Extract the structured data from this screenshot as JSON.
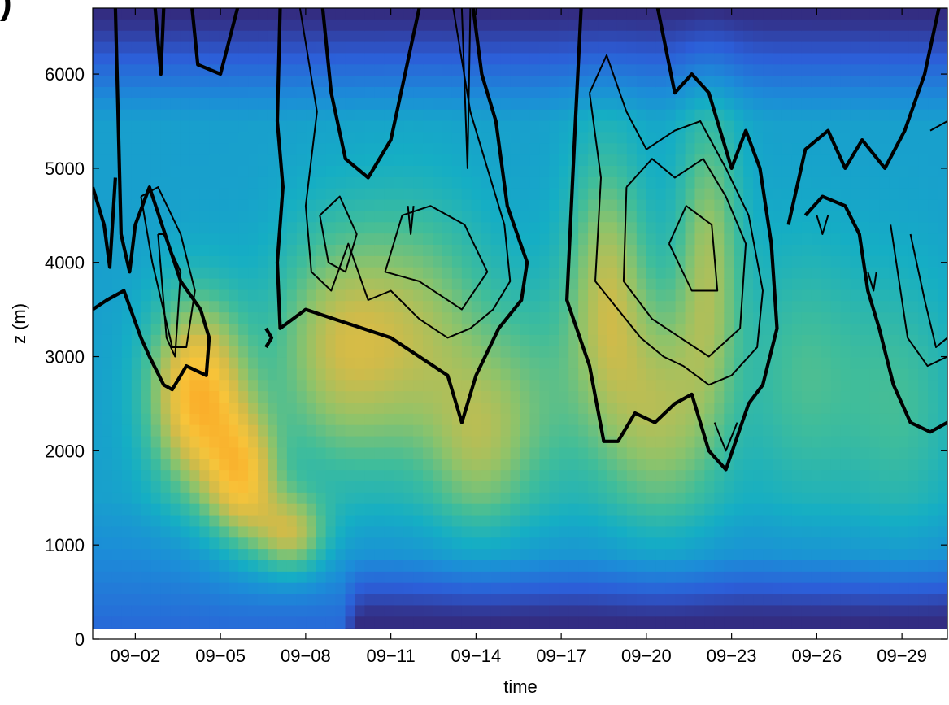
{
  "panel": {
    "letter": ")"
  },
  "chart_data": {
    "type": "heatmap",
    "title": "",
    "xlabel": "time",
    "ylabel": "z (m)",
    "xlim": [
      0.5,
      30.6
    ],
    "ylim": [
      0,
      6700
    ],
    "x_ticks": [
      {
        "value": 2,
        "label": "09−02"
      },
      {
        "value": 5,
        "label": "09−05"
      },
      {
        "value": 8,
        "label": "09−08"
      },
      {
        "value": 11,
        "label": "09−11"
      },
      {
        "value": 14,
        "label": "09−14"
      },
      {
        "value": 17,
        "label": "09−17"
      },
      {
        "value": 20,
        "label": "09−20"
      },
      {
        "value": 23,
        "label": "09−23"
      },
      {
        "value": 26,
        "label": "09−26"
      },
      {
        "value": 29,
        "label": "09−29"
      }
    ],
    "y_ticks": [
      {
        "value": 0,
        "label": "0"
      },
      {
        "value": 1000,
        "label": "1000"
      },
      {
        "value": 2000,
        "label": "2000"
      },
      {
        "value": 3000,
        "label": "3000"
      },
      {
        "value": 4000,
        "label": "4000"
      },
      {
        "value": 5000,
        "label": "5000"
      },
      {
        "value": 6000,
        "label": "6000"
      }
    ],
    "colormap": [
      "#332d82",
      "#2c5ed8",
      "#1c8cd8",
      "#15aec4",
      "#40bd9a",
      "#8ec36a",
      "#d1bb49",
      "#f7c43a",
      "#fba725"
    ],
    "field_blobs": [
      {
        "x": 4.2,
        "z": 2600,
        "amp": 1.0,
        "sx": 1.2,
        "sz": 700
      },
      {
        "x": 5.8,
        "z": 1700,
        "amp": 0.75,
        "sx": 0.9,
        "sz": 500
      },
      {
        "x": 7.5,
        "z": 1100,
        "amp": 0.65,
        "sx": 0.9,
        "sz": 300
      },
      {
        "x": 9.0,
        "z": 3100,
        "amp": 0.55,
        "sx": 1.6,
        "sz": 900
      },
      {
        "x": 12.0,
        "z": 3200,
        "amp": 0.5,
        "sx": 1.8,
        "sz": 1000
      },
      {
        "x": 14.0,
        "z": 2000,
        "amp": 0.35,
        "sx": 1.2,
        "sz": 700
      },
      {
        "x": 18.6,
        "z": 3800,
        "amp": 0.55,
        "sx": 1.0,
        "sz": 1000
      },
      {
        "x": 20.5,
        "z": 2400,
        "amp": 0.55,
        "sx": 1.5,
        "sz": 900
      },
      {
        "x": 22.2,
        "z": 4100,
        "amp": 0.5,
        "sx": 0.8,
        "sz": 1100
      },
      {
        "x": 25.5,
        "z": 2800,
        "amp": 0.3,
        "sx": 1.5,
        "sz": 1000
      },
      {
        "x": 29.0,
        "z": 2500,
        "amp": 0.28,
        "sx": 1.5,
        "sz": 1000
      },
      {
        "x": 16.0,
        "z": 2500,
        "amp": 0.3,
        "sx": 1.5,
        "sz": 900
      }
    ],
    "low_layer": {
      "z_top": 900,
      "x_start": 9.2,
      "x_end": 30.6,
      "strength": 0.6
    },
    "high_cool": {
      "z_from": 5500,
      "strength": 0.35
    },
    "contours": [
      {
        "weight": "thick",
        "points": [
          [
            0.5,
            3500
          ],
          [
            1.0,
            3600
          ],
          [
            1.6,
            3700
          ],
          [
            2.2,
            3200
          ],
          [
            2.5,
            3000
          ],
          [
            3.0,
            2700
          ],
          [
            3.3,
            2650
          ],
          [
            3.8,
            2900
          ],
          [
            4.5,
            2800
          ],
          [
            4.6,
            3200
          ],
          [
            4.3,
            3500
          ],
          [
            3.6,
            3800
          ],
          [
            2.5,
            4800
          ],
          [
            2.0,
            4400
          ],
          [
            1.8,
            3900
          ],
          [
            1.5,
            4300
          ],
          [
            1.3,
            6700
          ]
        ]
      },
      {
        "weight": "thick",
        "points": [
          [
            0.5,
            4800
          ],
          [
            0.9,
            4400
          ],
          [
            1.1,
            3950
          ],
          [
            1.3,
            4900
          ]
        ]
      },
      {
        "weight": "thin",
        "points": [
          [
            2.2,
            4700
          ],
          [
            2.6,
            4000
          ],
          [
            3.3,
            3100
          ],
          [
            3.8,
            3100
          ],
          [
            4.1,
            3700
          ],
          [
            3.6,
            4300
          ],
          [
            2.8,
            4800
          ],
          [
            2.2,
            4700
          ]
        ]
      },
      {
        "weight": "thin",
        "points": [
          [
            2.8,
            4300
          ],
          [
            3.1,
            3200
          ],
          [
            3.4,
            3000
          ],
          [
            3.6,
            3900
          ],
          [
            3.0,
            4300
          ],
          [
            2.8,
            4300
          ]
        ]
      },
      {
        "weight": "thick",
        "points": [
          [
            4.0,
            6700
          ],
          [
            4.2,
            6100
          ],
          [
            5.0,
            6000
          ],
          [
            5.6,
            6700
          ]
        ]
      },
      {
        "weight": "thick",
        "points": [
          [
            2.7,
            6700
          ],
          [
            2.9,
            6000
          ],
          [
            3.0,
            6700
          ]
        ]
      },
      {
        "weight": "thick",
        "points": [
          [
            6.6,
            3100
          ],
          [
            6.8,
            3200
          ],
          [
            6.6,
            3300
          ]
        ]
      },
      {
        "weight": "thick",
        "points": [
          [
            7.1,
            6700
          ],
          [
            7.0,
            5500
          ],
          [
            7.2,
            4800
          ],
          [
            7.0,
            4000
          ],
          [
            7.1,
            3300
          ],
          [
            8.0,
            3500
          ],
          [
            9.0,
            3400
          ],
          [
            10.0,
            3300
          ],
          [
            11.0,
            3200
          ],
          [
            12.0,
            3000
          ],
          [
            13.0,
            2800
          ],
          [
            13.5,
            2300
          ],
          [
            14.0,
            2800
          ],
          [
            14.8,
            3300
          ],
          [
            15.6,
            3600
          ],
          [
            15.8,
            4000
          ],
          [
            15.1,
            4600
          ],
          [
            14.7,
            5500
          ],
          [
            14.2,
            6000
          ],
          [
            13.9,
            6700
          ]
        ]
      },
      {
        "weight": "thick",
        "points": [
          [
            8.6,
            6700
          ],
          [
            8.9,
            5800
          ],
          [
            9.4,
            5100
          ],
          [
            10.2,
            4900
          ],
          [
            11.0,
            5300
          ],
          [
            11.5,
            6000
          ],
          [
            12.0,
            6700
          ]
        ]
      },
      {
        "weight": "thin",
        "points": [
          [
            7.8,
            6700
          ],
          [
            8.4,
            5600
          ],
          [
            8.0,
            4600
          ],
          [
            8.2,
            3900
          ],
          [
            8.9,
            3700
          ],
          [
            9.5,
            4200
          ],
          [
            10.2,
            3600
          ],
          [
            11.0,
            3700
          ],
          [
            12.0,
            3400
          ],
          [
            13.0,
            3200
          ],
          [
            13.8,
            3300
          ],
          [
            14.6,
            3500
          ],
          [
            15.2,
            3800
          ],
          [
            15.0,
            4400
          ],
          [
            14.4,
            5000
          ],
          [
            13.8,
            5600
          ],
          [
            13.2,
            6700
          ]
        ]
      },
      {
        "weight": "thin",
        "points": [
          [
            10.8,
            3900
          ],
          [
            12.0,
            3800
          ],
          [
            13.5,
            3500
          ],
          [
            14.4,
            3900
          ],
          [
            13.6,
            4400
          ],
          [
            12.4,
            4600
          ],
          [
            11.4,
            4500
          ],
          [
            10.8,
            3900
          ]
        ]
      },
      {
        "weight": "thin",
        "points": [
          [
            11.6,
            4600
          ],
          [
            11.7,
            4300
          ],
          [
            11.8,
            4600
          ]
        ]
      },
      {
        "weight": "thin",
        "points": [
          [
            13.5,
            6700
          ],
          [
            13.7,
            5000
          ],
          [
            13.8,
            6700
          ]
        ]
      },
      {
        "weight": "thin",
        "points": [
          [
            8.5,
            4500
          ],
          [
            9.2,
            4700
          ],
          [
            9.8,
            4300
          ],
          [
            9.4,
            3900
          ],
          [
            8.8,
            4000
          ],
          [
            8.5,
            4500
          ]
        ]
      },
      {
        "weight": "thick",
        "points": [
          [
            17.7,
            6700
          ],
          [
            17.5,
            5500
          ],
          [
            17.2,
            3600
          ],
          [
            18.0,
            2900
          ],
          [
            18.5,
            2100
          ],
          [
            19.0,
            2100
          ],
          [
            19.6,
            2400
          ],
          [
            20.3,
            2300
          ],
          [
            21.0,
            2500
          ],
          [
            21.6,
            2600
          ],
          [
            22.2,
            2000
          ],
          [
            22.8,
            1800
          ],
          [
            23.6,
            2500
          ],
          [
            24.1,
            2700
          ],
          [
            24.6,
            3300
          ],
          [
            24.4,
            4200
          ],
          [
            24.0,
            5000
          ],
          [
            23.5,
            5400
          ],
          [
            23.0,
            5000
          ],
          [
            22.2,
            5800
          ],
          [
            21.6,
            6000
          ],
          [
            21.0,
            5800
          ],
          [
            20.4,
            6700
          ]
        ]
      },
      {
        "weight": "thin",
        "points": [
          [
            18.0,
            5800
          ],
          [
            18.4,
            4900
          ],
          [
            18.2,
            3800
          ],
          [
            19.0,
            3500
          ],
          [
            19.8,
            3200
          ],
          [
            20.6,
            3000
          ],
          [
            21.3,
            2900
          ],
          [
            22.2,
            2700
          ],
          [
            23.0,
            2800
          ],
          [
            23.9,
            3100
          ],
          [
            24.1,
            3700
          ],
          [
            23.6,
            4500
          ],
          [
            22.8,
            5000
          ],
          [
            21.9,
            5500
          ],
          [
            21.0,
            5400
          ],
          [
            20.0,
            5200
          ],
          [
            19.3,
            5600
          ],
          [
            18.6,
            6200
          ],
          [
            18.0,
            5800
          ]
        ]
      },
      {
        "weight": "thin",
        "points": [
          [
            19.3,
            4800
          ],
          [
            19.2,
            3800
          ],
          [
            20.2,
            3400
          ],
          [
            21.2,
            3200
          ],
          [
            22.2,
            3000
          ],
          [
            23.3,
            3300
          ],
          [
            23.5,
            4200
          ],
          [
            22.8,
            4700
          ],
          [
            22.0,
            5100
          ],
          [
            21.0,
            4900
          ],
          [
            20.2,
            5100
          ],
          [
            19.3,
            4800
          ]
        ]
      },
      {
        "weight": "thin",
        "points": [
          [
            20.8,
            4200
          ],
          [
            21.6,
            3700
          ],
          [
            22.5,
            3700
          ],
          [
            22.3,
            4400
          ],
          [
            21.4,
            4600
          ],
          [
            20.8,
            4200
          ]
        ]
      },
      {
        "weight": "thin",
        "points": [
          [
            23.2,
            2300
          ],
          [
            22.8,
            2000
          ],
          [
            22.4,
            2300
          ]
        ]
      },
      {
        "weight": "thick",
        "points": [
          [
            25.6,
            4500
          ],
          [
            26.2,
            4700
          ],
          [
            27.0,
            4600
          ],
          [
            27.5,
            4300
          ],
          [
            27.8,
            3700
          ],
          [
            28.2,
            3300
          ],
          [
            28.7,
            2700
          ],
          [
            29.3,
            2300
          ],
          [
            30.0,
            2200
          ],
          [
            30.6,
            2300
          ]
        ]
      },
      {
        "weight": "thick",
        "points": [
          [
            25.0,
            4400
          ],
          [
            25.6,
            5200
          ],
          [
            26.4,
            5400
          ],
          [
            27.0,
            5000
          ],
          [
            27.6,
            5300
          ],
          [
            28.4,
            5000
          ],
          [
            29.1,
            5400
          ],
          [
            29.8,
            6000
          ],
          [
            30.3,
            6700
          ]
        ]
      },
      {
        "weight": "thin",
        "points": [
          [
            28.6,
            4400
          ],
          [
            29.2,
            3200
          ],
          [
            29.9,
            2900
          ],
          [
            30.6,
            3000
          ]
        ]
      },
      {
        "weight": "thin",
        "points": [
          [
            29.3,
            4300
          ],
          [
            29.8,
            3600
          ],
          [
            30.2,
            3100
          ],
          [
            30.6,
            3200
          ]
        ]
      },
      {
        "weight": "thin",
        "points": [
          [
            30.0,
            5400
          ],
          [
            30.6,
            5500
          ]
        ]
      },
      {
        "weight": "thin",
        "points": [
          [
            26.0,
            4500
          ],
          [
            26.2,
            4300
          ],
          [
            26.4,
            4500
          ]
        ]
      },
      {
        "weight": "thin",
        "points": [
          [
            27.8,
            3900
          ],
          [
            28.0,
            3700
          ],
          [
            28.1,
            3900
          ]
        ]
      }
    ]
  }
}
